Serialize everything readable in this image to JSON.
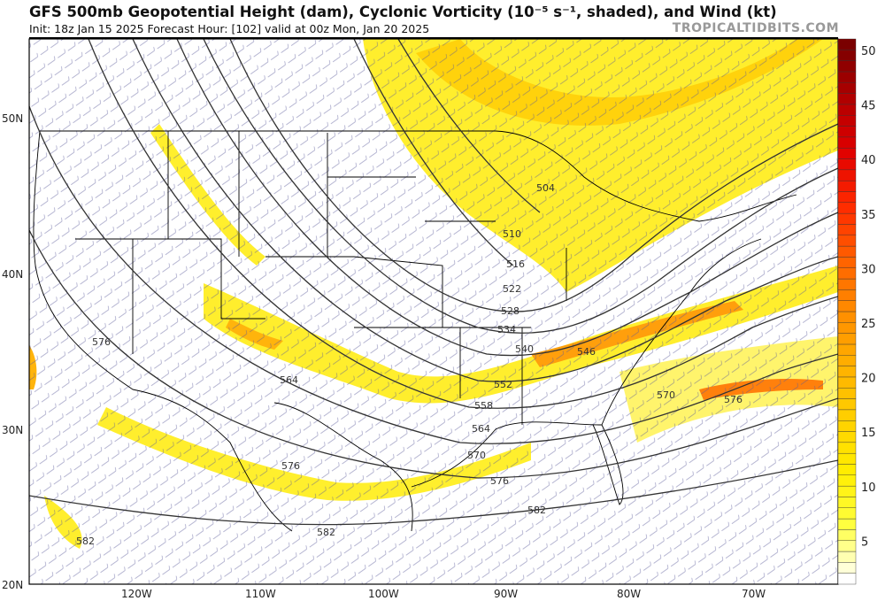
{
  "header": {
    "title": "GFS 500mb Geopotential Height (dam), Cyclonic Vorticity (10⁻⁵ s⁻¹, shaded), and Wind (kt)",
    "subtitle": "Init: 18z Jan 15 2025   Forecast Hour: [102]   valid at 00z Mon, Jan 20 2025",
    "brand": "TROPICALTIDBITS.COM"
  },
  "map": {
    "lat_labels": [
      "50N",
      "40N",
      "30N",
      "20N"
    ],
    "lon_labels": [
      "120W",
      "110W",
      "100W",
      "90W",
      "80W",
      "70W"
    ],
    "contour_labels": [
      "576",
      "564",
      "504",
      "510",
      "516",
      "522",
      "528",
      "534",
      "540",
      "546",
      "552",
      "558",
      "564",
      "570",
      "576",
      "582",
      "582",
      "582",
      "570",
      "576"
    ],
    "colors": {
      "shade_low": "#ffff33",
      "shade_mid": "#ffc000",
      "shade_high": "#e05000",
      "contour": "#333333",
      "barb": "#3a3a7a",
      "border": "#000000"
    }
  },
  "colorbar": {
    "labels": [
      "5",
      "10",
      "15",
      "20",
      "25",
      "30",
      "35",
      "40",
      "45",
      "50"
    ],
    "min": 0,
    "max": 50,
    "colors": [
      "#ffffff",
      "#ffff40",
      "#ffee00",
      "#ffd000",
      "#ffb000",
      "#ff8c00",
      "#ff6000",
      "#ff2a00",
      "#e00000",
      "#b00000",
      "#7a0000"
    ]
  }
}
